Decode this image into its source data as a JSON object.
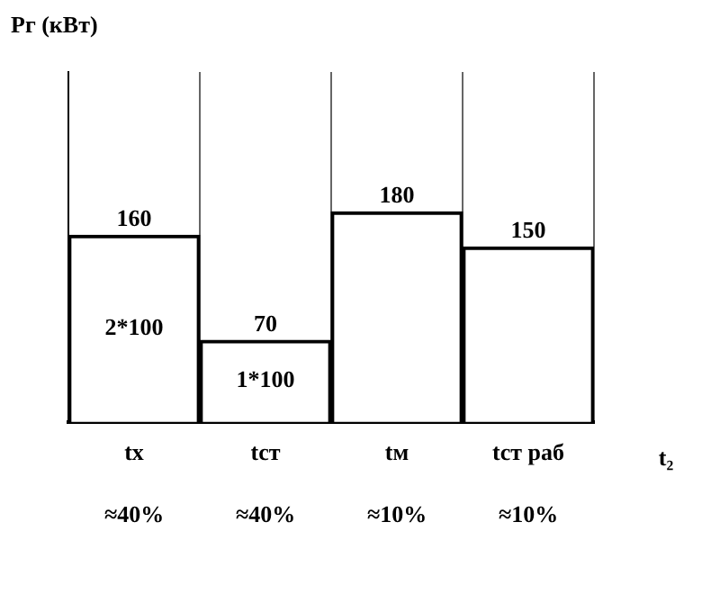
{
  "chart_data": {
    "type": "bar",
    "ylabel": "Pг (кВт)",
    "xlabel": "t₂",
    "categories": [
      "tх",
      "tст",
      "tм",
      "tст раб"
    ],
    "values": [
      160,
      70,
      180,
      150
    ],
    "color": "#ffffff",
    "ylim": [
      0,
      300
    ],
    "tick_labels": "x",
    "grid": "x",
    "data_labels": true,
    "annotations": [
      "2*100",
      "1*100",
      "≈40%",
      "≈40%",
      "≈10%",
      "≈10%"
    ]
  }
}
